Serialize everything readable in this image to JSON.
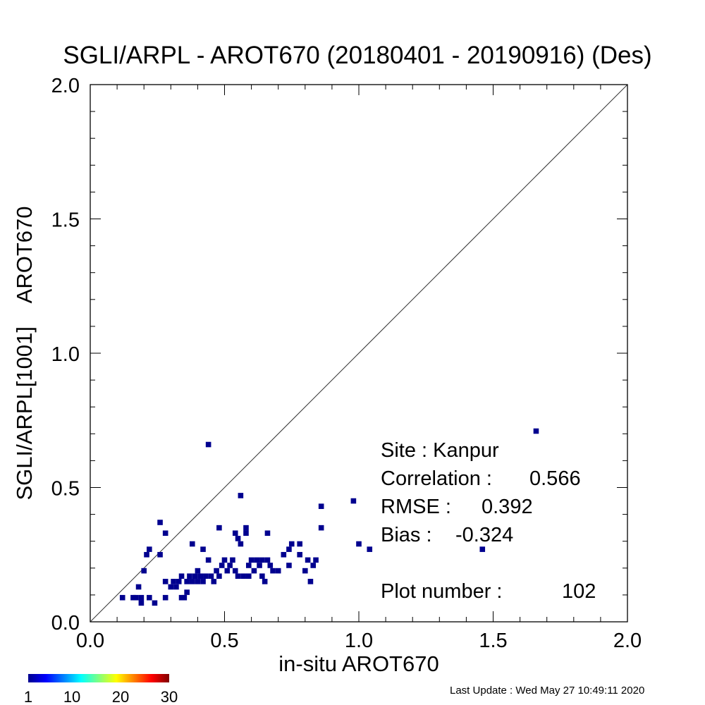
{
  "chart_data": {
    "type": "scatter",
    "title": "SGLI/ARPL - AROT670 (20180401 - 20190916) (Des)",
    "xlabel": "in-situ AROT670",
    "ylabel": "SGLI/ARPL[1001]    AROT670",
    "xlim": [
      0.0,
      2.0
    ],
    "ylim": [
      0.0,
      2.0
    ],
    "x_ticks": [
      "0.0",
      "0.5",
      "1.0",
      "1.5",
      "2.0"
    ],
    "y_ticks": [
      "0.0",
      "0.5",
      "1.0",
      "1.5",
      "2.0"
    ],
    "grid": false,
    "one_to_one_line": true,
    "point_color": "#00008f",
    "points": [
      [
        0.12,
        0.09
      ],
      [
        0.16,
        0.09
      ],
      [
        0.17,
        0.09
      ],
      [
        0.18,
        0.13
      ],
      [
        0.19,
        0.07
      ],
      [
        0.19,
        0.09
      ],
      [
        0.2,
        0.19
      ],
      [
        0.21,
        0.25
      ],
      [
        0.22,
        0.27
      ],
      [
        0.22,
        0.09
      ],
      [
        0.24,
        0.07
      ],
      [
        0.26,
        0.37
      ],
      [
        0.26,
        0.25
      ],
      [
        0.28,
        0.33
      ],
      [
        0.28,
        0.15
      ],
      [
        0.28,
        0.09
      ],
      [
        0.3,
        0.13
      ],
      [
        0.31,
        0.15
      ],
      [
        0.32,
        0.13
      ],
      [
        0.33,
        0.15
      ],
      [
        0.34,
        0.17
      ],
      [
        0.34,
        0.09
      ],
      [
        0.35,
        0.09
      ],
      [
        0.36,
        0.11
      ],
      [
        0.36,
        0.15
      ],
      [
        0.37,
        0.17
      ],
      [
        0.38,
        0.15
      ],
      [
        0.38,
        0.29
      ],
      [
        0.39,
        0.17
      ],
      [
        0.4,
        0.15
      ],
      [
        0.4,
        0.19
      ],
      [
        0.41,
        0.17
      ],
      [
        0.42,
        0.15
      ],
      [
        0.42,
        0.27
      ],
      [
        0.43,
        0.17
      ],
      [
        0.44,
        0.66
      ],
      [
        0.44,
        0.23
      ],
      [
        0.45,
        0.17
      ],
      [
        0.46,
        0.15
      ],
      [
        0.47,
        0.19
      ],
      [
        0.48,
        0.35
      ],
      [
        0.48,
        0.17
      ],
      [
        0.49,
        0.21
      ],
      [
        0.5,
        0.23
      ],
      [
        0.51,
        0.19
      ],
      [
        0.52,
        0.21
      ],
      [
        0.53,
        0.23
      ],
      [
        0.54,
        0.33
      ],
      [
        0.54,
        0.19
      ],
      [
        0.55,
        0.31
      ],
      [
        0.55,
        0.17
      ],
      [
        0.56,
        0.47
      ],
      [
        0.56,
        0.29
      ],
      [
        0.57,
        0.17
      ],
      [
        0.58,
        0.35
      ],
      [
        0.58,
        0.33
      ],
      [
        0.59,
        0.17
      ],
      [
        0.59,
        0.21
      ],
      [
        0.6,
        0.23
      ],
      [
        0.61,
        0.19
      ],
      [
        0.62,
        0.23
      ],
      [
        0.63,
        0.21
      ],
      [
        0.64,
        0.23
      ],
      [
        0.64,
        0.17
      ],
      [
        0.65,
        0.15
      ],
      [
        0.66,
        0.33
      ],
      [
        0.66,
        0.23
      ],
      [
        0.67,
        0.21
      ],
      [
        0.68,
        0.19
      ],
      [
        0.7,
        0.19
      ],
      [
        0.72,
        0.25
      ],
      [
        0.74,
        0.27
      ],
      [
        0.74,
        0.21
      ],
      [
        0.75,
        0.29
      ],
      [
        0.78,
        0.29
      ],
      [
        0.78,
        0.25
      ],
      [
        0.8,
        0.19
      ],
      [
        0.81,
        0.23
      ],
      [
        0.82,
        0.15
      ],
      [
        0.83,
        0.21
      ],
      [
        0.84,
        0.23
      ],
      [
        0.86,
        0.43
      ],
      [
        0.86,
        0.35
      ],
      [
        0.98,
        0.45
      ],
      [
        1.0,
        0.29
      ],
      [
        1.04,
        0.27
      ],
      [
        1.46,
        0.27
      ],
      [
        1.66,
        0.71
      ]
    ],
    "annotations": {
      "site": "Site : Kanpur",
      "correlation_label": "Correlation :",
      "correlation_value": "0.566",
      "rmse_label": "RMSE :",
      "rmse_value": "0.392",
      "bias_label": "Bias :",
      "bias_value": "-0.324",
      "plot_number_label": "Plot number :",
      "plot_number_value": "102"
    },
    "colorbar": {
      "ticks": [
        "1",
        "10",
        "20",
        "30"
      ],
      "range": [
        1,
        30
      ],
      "colors": [
        "#00008f",
        "#0000ff",
        "#00ffff",
        "#ffff00",
        "#ff0000",
        "#800000"
      ]
    }
  },
  "footer": {
    "last_update": "Last Update : Wed May 27 10:49:11 2020"
  }
}
